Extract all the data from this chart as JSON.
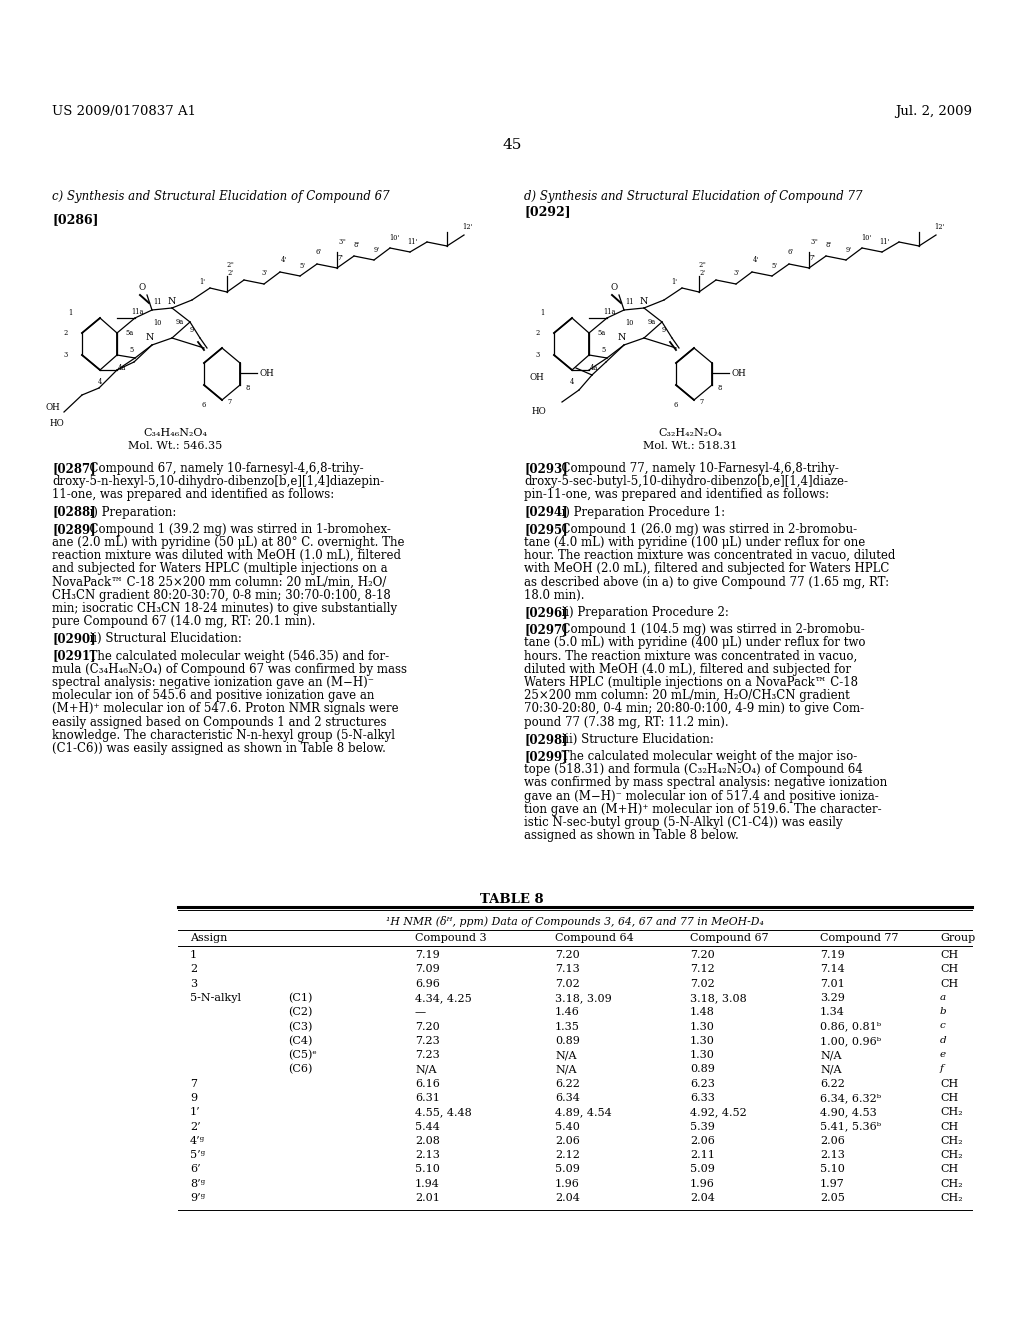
{
  "background_color": "#ffffff",
  "page_number": "45",
  "header_left": "US 2009/0170837 A1",
  "header_right": "Jul. 2, 2009",
  "section_c_title": "c) Synthesis and Structural Elucidation of Compound 67",
  "section_d_title": "d) Synthesis and Structural Elucidation of Compound 77",
  "para_0286": "[0286]",
  "para_0292": "[0292]",
  "formula_left": "C₃₄H₄₆N₂O₄",
  "mol_wt_left": "Mol. Wt.: 546.35",
  "formula_right": "C₃₂H₄₂N₂O₄",
  "mol_wt_right": "Mol. Wt.: 518.31",
  "table_title": "TABLE 8",
  "table_subtitle": "¹H NMR (δᴴ, ppm) Data of Compounds 3, 64, 67 and 77 in MeOH-D₄",
  "table_headers": [
    "Assign",
    "",
    "Compound 3",
    "Compound 64",
    "Compound 67",
    "Compound 77",
    "Group"
  ],
  "table_rows": [
    [
      "1",
      "",
      "7.19",
      "7.20",
      "7.20",
      "7.19",
      "CH"
    ],
    [
      "2",
      "",
      "7.09",
      "7.13",
      "7.12",
      "7.14",
      "CH"
    ],
    [
      "3",
      "",
      "6.96",
      "7.02",
      "7.02",
      "7.01",
      "CH"
    ],
    [
      "5-N-alkyl",
      "(C1)",
      "4.34, 4.25",
      "3.18, 3.09",
      "3.18, 3.08",
      "3.29",
      "a"
    ],
    [
      "",
      "(C2)",
      "—",
      "1.46",
      "1.48",
      "1.34",
      "b"
    ],
    [
      "",
      "(C3)",
      "7.20",
      "1.35",
      "1.30",
      "0.86, 0.81ᵇ",
      "c"
    ],
    [
      "",
      "(C4)",
      "7.23",
      "0.89",
      "1.30",
      "1.00, 0.96ᵇ",
      "d"
    ],
    [
      "",
      "(C5)ᵉ",
      "7.23",
      "N/A",
      "1.30",
      "N/A",
      "e"
    ],
    [
      "",
      "(C6)",
      "N/A",
      "N/A",
      "0.89",
      "N/A",
      "f"
    ],
    [
      "7",
      "",
      "6.16",
      "6.22",
      "6.23",
      "6.22",
      "CH"
    ],
    [
      "9",
      "",
      "6.31",
      "6.34",
      "6.33",
      "6.34, 6.32ᵇ",
      "CH"
    ],
    [
      "1’",
      "",
      "4.55, 4.48",
      "4.89, 4.54",
      "4.92, 4.52",
      "4.90, 4.53",
      "CH₂"
    ],
    [
      "2’",
      "",
      "5.44",
      "5.40",
      "5.39",
      "5.41, 5.36ᵇ",
      "CH"
    ],
    [
      "4’ᵍ",
      "",
      "2.08",
      "2.06",
      "2.06",
      "2.06",
      "CH₂"
    ],
    [
      "5’ᵍ",
      "",
      "2.13",
      "2.12",
      "2.11",
      "2.13",
      "CH₂"
    ],
    [
      "6’",
      "",
      "5.10",
      "5.09",
      "5.09",
      "5.10",
      "CH"
    ],
    [
      "8’ᵍ",
      "",
      "1.94",
      "1.96",
      "1.96",
      "1.97",
      "CH₂"
    ],
    [
      "9’ᵍ",
      "",
      "2.01",
      "2.04",
      "2.04",
      "2.05",
      "CH₂"
    ]
  ],
  "para_texts_left": [
    [
      "[0287]",
      "  Compound 67, namely 10-farnesyl-4,6,8-trihy-\ndroxy-5-n-hexyl-5,10-dihydro-dibenzo[b,e][1,4]diazepin-\n11-one, was prepared and identified as follows:"
    ],
    [
      "[0288]",
      "  i) Preparation:"
    ],
    [
      "[0289]",
      "  Compound 1 (39.2 mg) was stirred in 1-bromohex-\nane (2.0 mL) with pyridine (50 μL) at 80° C. overnight. The\nreaction mixture was diluted with MeOH (1.0 mL), filtered\nand subjected for Waters HPLC (multiple injections on a\nNovaPack™ C-18 25×200 mm column: 20 mL/min, H₂O/\nCH₃CN gradient 80:20-30:70, 0-8 min; 30:70-0:100, 8-18\nmin; isocratic CH₃CN 18-24 minutes) to give substantially\npure Compound 67 (14.0 mg, RT: 20.1 min)."
    ],
    [
      "[0290]",
      "  ii) Structural Elucidation:"
    ],
    [
      "[0291]",
      "  The calculated molecular weight (546.35) and for-\nmula (C₃₄H₄₆N₂O₄) of Compound 67 was confirmed by mass\nspectral analysis: negative ionization gave an (M−H)⁻\nmolecular ion of 545.6 and positive ionization gave an\n(M+H)⁺ molecular ion of 547.6. Proton NMR signals were\neasily assigned based on Compounds 1 and 2 structures\nknowledge. The characteristic N-n-hexyl group (5-N-alkyl\n(C1-C6)) was easily assigned as shown in Table 8 below."
    ]
  ],
  "para_texts_right": [
    [
      "[0293]",
      "  Compound 77, namely 10-Farnesyl-4,6,8-trihy-\ndroxy-5-sec-butyl-5,10-dihydro-dibenzo[b,e][1,4]diaze-\npin-11-one, was prepared and identified as follows:"
    ],
    [
      "[0294]",
      "  i) Preparation Procedure 1:"
    ],
    [
      "[0295]",
      "  Compound 1 (26.0 mg) was stirred in 2-bromobu-\ntane (4.0 mL) with pyridine (100 μL) under reflux for one\nhour. The reaction mixture was concentrated in vacuo, diluted\nwith MeOH (2.0 mL), filtered and subjected for Waters HPLC\nas described above (in a) to give Compound 77 (1.65 mg, RT:\n18.0 min)."
    ],
    [
      "[0296]",
      "  ii) Preparation Procedure 2:"
    ],
    [
      "[0297]",
      "  Compound 1 (104.5 mg) was stirred in 2-bromobu-\ntane (5.0 mL) with pyridine (400 μL) under reflux for two\nhours. The reaction mixture was concentrated in vacuo,\ndiluted with MeOH (4.0 mL), filtered and subjected for\nWaters HPLC (multiple injections on a NovaPack™ C-18\n25×200 mm column: 20 mL/min, H₂O/CH₃CN gradient\n70:30-20:80, 0-4 min; 20:80-0:100, 4-9 min) to give Com-\npound 77 (7.38 mg, RT: 11.2 min)."
    ],
    [
      "[0298]",
      "  iii) Structure Elucidation:"
    ],
    [
      "[0299]",
      "  The calculated molecular weight of the major iso-\ntope (518.31) and formula (C₃₂H₄₂N₂O₄) of Compound 64\nwas confirmed by mass spectral analysis: negative ionization\ngave an (M−H)⁻ molecular ion of 517.4 and positive ioniza-\ntion gave an (M+H)⁺ molecular ion of 519.6. The character-\nistic N-sec-butyl group (5-N-Alkyl (C1-C4)) was easily\nassigned as shown in Table 8 below."
    ]
  ]
}
